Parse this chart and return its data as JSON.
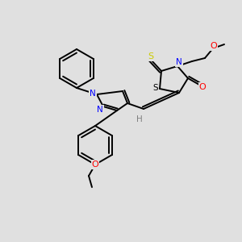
{
  "background_color": "#e0e0e0",
  "bond_color": "#000000",
  "atom_colors": {
    "N": "#0000ff",
    "O": "#ff0000",
    "S_thioxo": "#cccc00",
    "S_ring": "#000000",
    "H": "#7f7f7f"
  },
  "figsize": [
    3.0,
    3.0
  ],
  "dpi": 100,
  "lw": 1.4
}
